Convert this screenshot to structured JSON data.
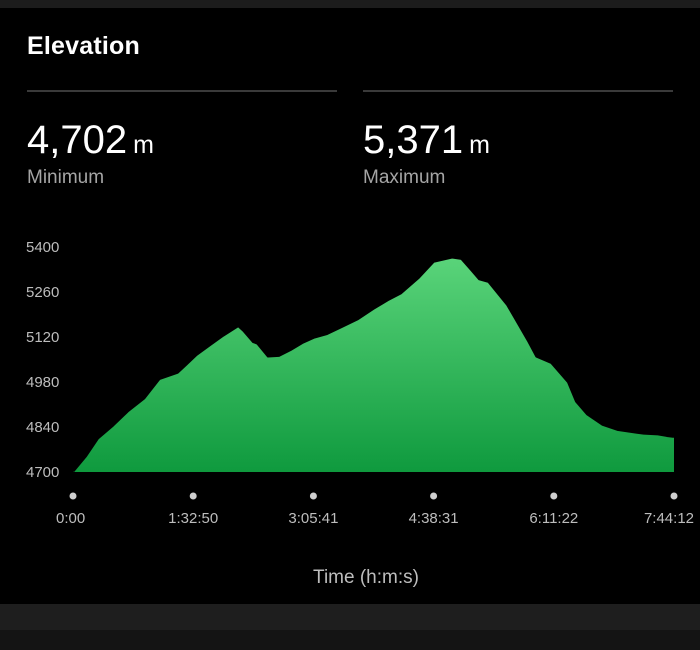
{
  "header": {
    "title": "Elevation"
  },
  "stats": {
    "min": {
      "value": "4,702",
      "unit": "m",
      "label": "Minimum"
    },
    "max": {
      "value": "5,371",
      "unit": "m",
      "label": "Maximum"
    }
  },
  "colors": {
    "fill_top": "#5ad47a",
    "fill_bottom": "#0f9a3e",
    "outline": "#000000",
    "tick_dot": "#cfcfcf"
  },
  "chart_data": {
    "type": "area",
    "xlabel": "Time (h:m:s)",
    "ylabel": "",
    "y_ticks": [
      "5400",
      "5260",
      "5120",
      "4980",
      "4840",
      "4700"
    ],
    "y_tick_values": [
      5400,
      5260,
      5120,
      4980,
      4840,
      4700
    ],
    "x_ticks": [
      "0:00",
      "1:32:50",
      "3:05:41",
      "4:38:31",
      "6:11:22",
      "7:44:12"
    ],
    "x_tick_seconds": [
      0,
      5570,
      11141,
      16711,
      22282,
      27852
    ],
    "ylim": [
      4700,
      5400
    ],
    "xlim_seconds": [
      0,
      27852
    ],
    "series": [
      {
        "x_seconds": [
          0,
          600,
          1150,
          1850,
          2550,
          3300,
          4000,
          4850,
          5250,
          5720,
          6340,
          6960,
          7660,
          7900,
          8350,
          8550,
          9040,
          9540,
          10070,
          10620,
          11150,
          11770,
          12390,
          13170,
          13910,
          14580,
          15180,
          16020,
          16710,
          17570,
          18000,
          18450,
          18830,
          19260,
          20130,
          20480,
          21080,
          21480,
          22170,
          22950,
          23320,
          23830,
          24530,
          25230,
          25900,
          26450,
          27110,
          27520,
          27852
        ],
        "values": [
          4702,
          4750,
          4805,
          4845,
          4890,
          4930,
          4990,
          5010,
          5035,
          5065,
          5095,
          5125,
          5155,
          5140,
          5105,
          5100,
          5060,
          5062,
          5080,
          5102,
          5118,
          5130,
          5150,
          5175,
          5208,
          5235,
          5256,
          5305,
          5355,
          5368,
          5364,
          5330,
          5300,
          5292,
          5220,
          5180,
          5110,
          5060,
          5040,
          4980,
          4920,
          4880,
          4848,
          4832,
          4825,
          4820,
          4818,
          4813,
          4810
        ]
      }
    ]
  }
}
